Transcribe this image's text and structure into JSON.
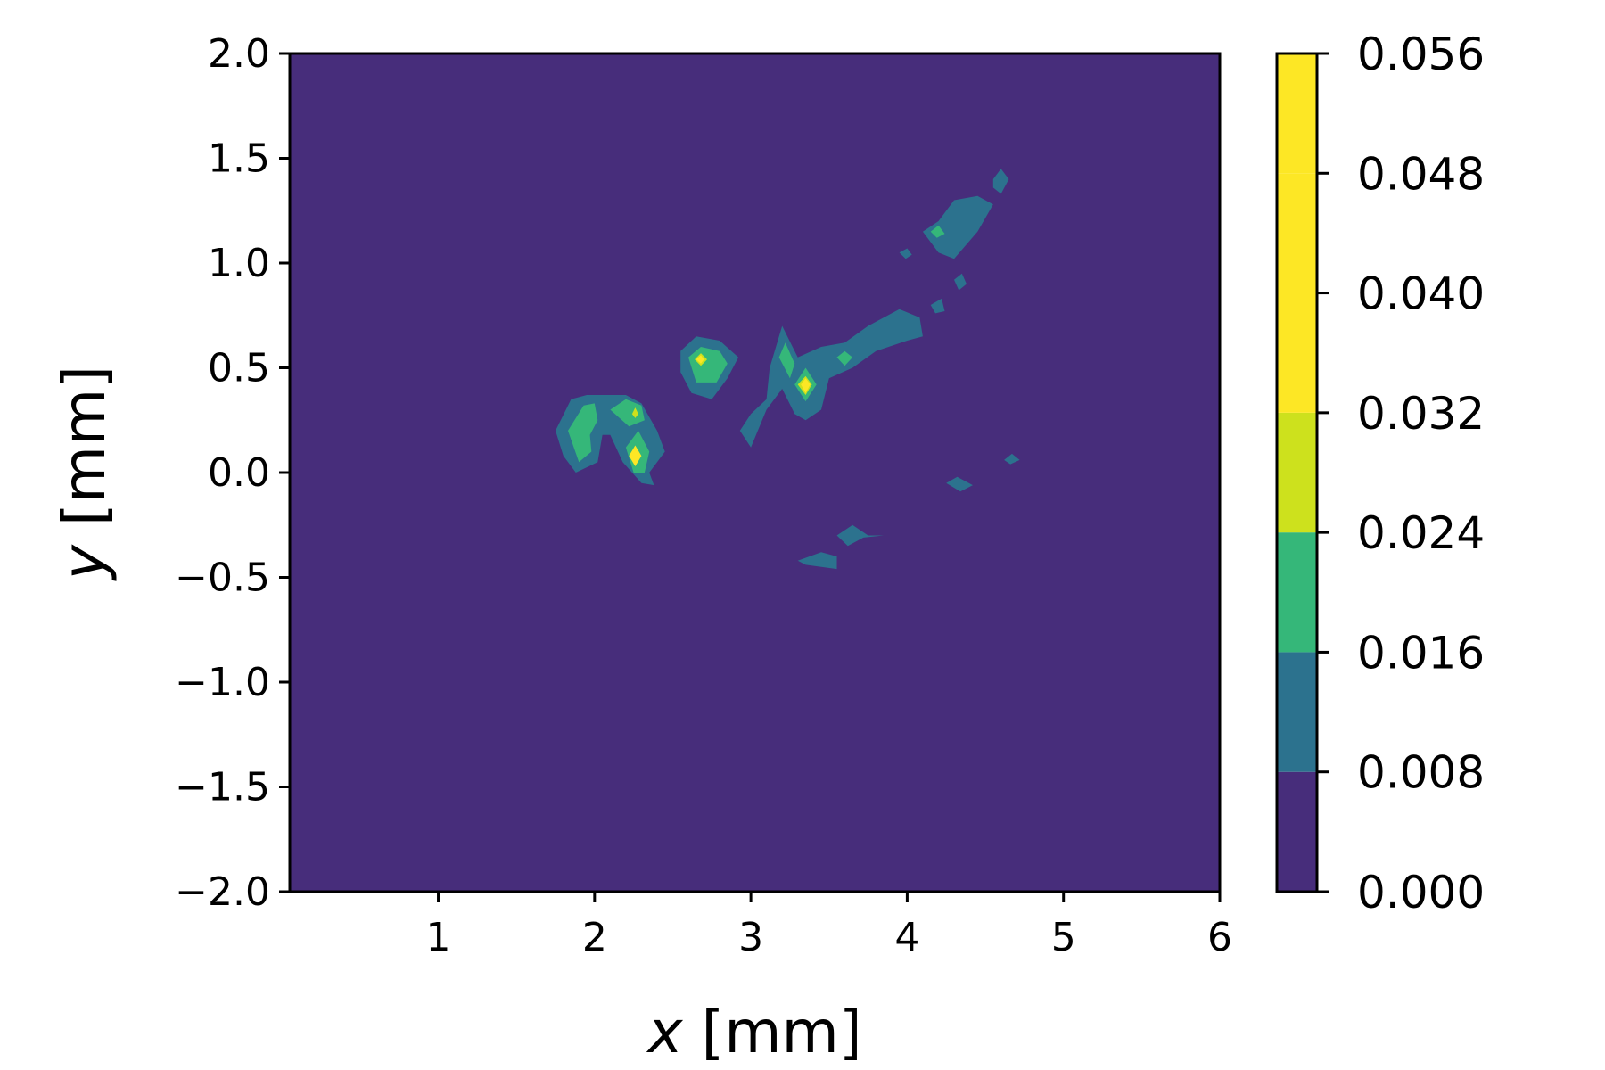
{
  "chart_data": {
    "type": "heatmap",
    "subtype": "filled-contour",
    "title": "",
    "xlabel": {
      "var": "x",
      "unit": " [mm]"
    },
    "ylabel": {
      "var": "y",
      "unit": " [mm]"
    },
    "xlim": [
      0.05,
      6.0
    ],
    "ylim": [
      -2.0,
      2.0
    ],
    "x_ticks": [
      1,
      2,
      3,
      4,
      5,
      6
    ],
    "x_tick_labels": [
      "1",
      "2",
      "3",
      "4",
      "5",
      "6"
    ],
    "y_ticks": [
      -2.0,
      -1.5,
      -1.0,
      -0.5,
      0.0,
      0.5,
      1.0,
      1.5,
      2.0
    ],
    "y_tick_labels": [
      "−2.0",
      "−1.5",
      "−1.0",
      "−0.5",
      "0.0",
      "0.5",
      "1.0",
      "1.5",
      "2.0"
    ],
    "background_color": "#472d7b",
    "colorbar": {
      "levels": [
        0.0,
        0.008,
        0.016,
        0.024,
        0.032,
        0.048,
        0.056
      ],
      "tick_values": [
        0.0,
        0.008,
        0.016,
        0.024,
        0.032,
        0.04,
        0.048,
        0.056
      ],
      "tick_labels": [
        "0.000",
        "0.008",
        "0.016",
        "0.024",
        "0.032",
        "0.040",
        "0.048",
        "0.056"
      ],
      "colors": [
        "#472d7b",
        "#2c728e",
        "#35b779",
        "#cde11d",
        "#fde725",
        "#fde725"
      ]
    },
    "regions": [
      {
        "level": 1,
        "points": [
          [
            1.75,
            0.2
          ],
          [
            1.85,
            0.35
          ],
          [
            1.95,
            0.37
          ],
          [
            2.2,
            0.37
          ],
          [
            2.3,
            0.33
          ],
          [
            2.4,
            0.2
          ],
          [
            2.45,
            0.1
          ],
          [
            2.35,
            0.0
          ],
          [
            2.38,
            -0.06
          ],
          [
            2.3,
            -0.05
          ],
          [
            2.18,
            0.05
          ],
          [
            2.1,
            0.18
          ],
          [
            2.05,
            0.18
          ],
          [
            2.02,
            0.05
          ],
          [
            1.88,
            0.0
          ],
          [
            1.8,
            0.08
          ]
        ]
      },
      {
        "level": 1,
        "points": [
          [
            2.55,
            0.58
          ],
          [
            2.65,
            0.65
          ],
          [
            2.8,
            0.63
          ],
          [
            2.92,
            0.55
          ],
          [
            2.85,
            0.45
          ],
          [
            2.75,
            0.35
          ],
          [
            2.62,
            0.38
          ],
          [
            2.55,
            0.48
          ]
        ]
      },
      {
        "level": 1,
        "points": [
          [
            2.93,
            0.2
          ],
          [
            3.0,
            0.28
          ],
          [
            3.1,
            0.35
          ],
          [
            3.12,
            0.5
          ],
          [
            3.2,
            0.7
          ],
          [
            3.3,
            0.55
          ],
          [
            3.45,
            0.6
          ],
          [
            3.6,
            0.62
          ],
          [
            3.75,
            0.7
          ],
          [
            3.95,
            0.78
          ],
          [
            4.08,
            0.74
          ],
          [
            4.1,
            0.65
          ],
          [
            4.0,
            0.63
          ],
          [
            3.8,
            0.58
          ],
          [
            3.65,
            0.5
          ],
          [
            3.5,
            0.45
          ],
          [
            3.45,
            0.3
          ],
          [
            3.35,
            0.25
          ],
          [
            3.28,
            0.28
          ],
          [
            3.2,
            0.4
          ],
          [
            3.1,
            0.3
          ],
          [
            3.0,
            0.12
          ]
        ]
      },
      {
        "level": 1,
        "points": [
          [
            4.2,
            1.2
          ],
          [
            4.3,
            1.3
          ],
          [
            4.45,
            1.32
          ],
          [
            4.55,
            1.28
          ],
          [
            4.45,
            1.15
          ],
          [
            4.3,
            1.02
          ],
          [
            4.2,
            1.05
          ],
          [
            4.1,
            1.15
          ]
        ]
      },
      {
        "level": 1,
        "points": [
          [
            4.55,
            1.4
          ],
          [
            4.6,
            1.45
          ],
          [
            4.65,
            1.4
          ],
          [
            4.6,
            1.33
          ],
          [
            4.55,
            1.36
          ]
        ]
      },
      {
        "level": 1,
        "points": [
          [
            3.95,
            1.05
          ],
          [
            4.0,
            1.07
          ],
          [
            4.03,
            1.04
          ],
          [
            3.99,
            1.02
          ]
        ]
      },
      {
        "level": 1,
        "points": [
          [
            4.3,
            0.92
          ],
          [
            4.35,
            0.95
          ],
          [
            4.38,
            0.9
          ],
          [
            4.33,
            0.87
          ]
        ]
      },
      {
        "level": 1,
        "points": [
          [
            4.15,
            0.8
          ],
          [
            4.22,
            0.83
          ],
          [
            4.24,
            0.77
          ],
          [
            4.18,
            0.76
          ]
        ]
      },
      {
        "level": 1,
        "points": [
          [
            4.25,
            -0.05
          ],
          [
            4.32,
            -0.02
          ],
          [
            4.42,
            -0.06
          ],
          [
            4.34,
            -0.09
          ]
        ]
      },
      {
        "level": 1,
        "points": [
          [
            4.62,
            0.06
          ],
          [
            4.67,
            0.09
          ],
          [
            4.72,
            0.06
          ],
          [
            4.66,
            0.04
          ]
        ]
      },
      {
        "level": 1,
        "points": [
          [
            3.55,
            -0.3
          ],
          [
            3.65,
            -0.25
          ],
          [
            3.75,
            -0.3
          ],
          [
            3.85,
            -0.3
          ],
          [
            3.72,
            -0.31
          ],
          [
            3.62,
            -0.35
          ]
        ]
      },
      {
        "level": 1,
        "points": [
          [
            3.3,
            -0.42
          ],
          [
            3.45,
            -0.38
          ],
          [
            3.55,
            -0.4
          ],
          [
            3.55,
            -0.46
          ],
          [
            3.45,
            -0.45
          ],
          [
            3.35,
            -0.44
          ]
        ]
      },
      {
        "level": 2,
        "points": [
          [
            1.83,
            0.2
          ],
          [
            1.93,
            0.32
          ],
          [
            2.0,
            0.33
          ],
          [
            2.02,
            0.25
          ],
          [
            1.97,
            0.18
          ],
          [
            1.98,
            0.1
          ],
          [
            1.9,
            0.05
          ]
        ]
      },
      {
        "level": 2,
        "points": [
          [
            2.1,
            0.3
          ],
          [
            2.2,
            0.35
          ],
          [
            2.3,
            0.32
          ],
          [
            2.32,
            0.25
          ],
          [
            2.22,
            0.22
          ]
        ]
      },
      {
        "level": 2,
        "points": [
          [
            2.2,
            0.12
          ],
          [
            2.28,
            0.2
          ],
          [
            2.35,
            0.1
          ],
          [
            2.32,
            0.0
          ],
          [
            2.25,
            0.0
          ]
        ]
      },
      {
        "level": 2,
        "points": [
          [
            2.6,
            0.55
          ],
          [
            2.68,
            0.6
          ],
          [
            2.8,
            0.58
          ],
          [
            2.85,
            0.52
          ],
          [
            2.78,
            0.43
          ],
          [
            2.65,
            0.43
          ]
        ]
      },
      {
        "level": 2,
        "points": [
          [
            3.18,
            0.55
          ],
          [
            3.22,
            0.62
          ],
          [
            3.28,
            0.52
          ],
          [
            3.25,
            0.45
          ]
        ]
      },
      {
        "level": 2,
        "points": [
          [
            3.28,
            0.42
          ],
          [
            3.35,
            0.5
          ],
          [
            3.42,
            0.42
          ],
          [
            3.35,
            0.34
          ]
        ]
      },
      {
        "level": 2,
        "points": [
          [
            3.55,
            0.55
          ],
          [
            3.6,
            0.58
          ],
          [
            3.65,
            0.55
          ],
          [
            3.6,
            0.51
          ]
        ]
      },
      {
        "level": 2,
        "points": [
          [
            4.15,
            1.15
          ],
          [
            4.2,
            1.18
          ],
          [
            4.24,
            1.14
          ],
          [
            4.19,
            1.12
          ]
        ]
      },
      {
        "level": 3,
        "points": [
          [
            2.64,
            0.54
          ],
          [
            2.68,
            0.57
          ],
          [
            2.72,
            0.54
          ],
          [
            2.68,
            0.51
          ]
        ]
      },
      {
        "level": 3,
        "points": [
          [
            3.3,
            0.42
          ],
          [
            3.35,
            0.46
          ],
          [
            3.39,
            0.42
          ],
          [
            3.35,
            0.37
          ]
        ]
      },
      {
        "level": 3,
        "points": [
          [
            2.24,
            0.28
          ],
          [
            2.26,
            0.31
          ],
          [
            2.28,
            0.28
          ],
          [
            2.26,
            0.26
          ]
        ]
      },
      {
        "level": 4,
        "points": [
          [
            2.22,
            0.08
          ],
          [
            2.26,
            0.13
          ],
          [
            2.3,
            0.08
          ],
          [
            2.26,
            0.03
          ]
        ]
      },
      {
        "level": 4,
        "points": [
          [
            3.32,
            0.42
          ],
          [
            3.35,
            0.45
          ],
          [
            3.38,
            0.42
          ],
          [
            3.35,
            0.38
          ]
        ]
      },
      {
        "level": 4,
        "points": [
          [
            2.65,
            0.54
          ],
          [
            2.68,
            0.56
          ],
          [
            2.7,
            0.54
          ],
          [
            2.68,
            0.52
          ]
        ]
      }
    ]
  }
}
